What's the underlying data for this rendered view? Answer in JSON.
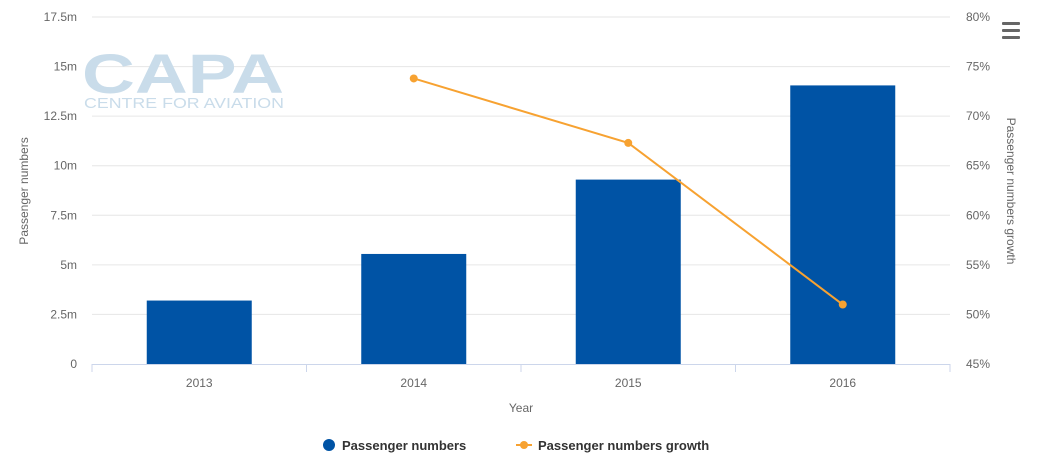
{
  "colors": {
    "bar": "#0053a5",
    "line": "#f7a231",
    "grid": "#e6e6e6",
    "axis_text": "#666666",
    "legend_text": "#333333",
    "watermark": "#c9dcea"
  },
  "watermark": {
    "logo_text": "CAPA",
    "tagline": "CENTRE FOR AVIATION"
  },
  "menu": {
    "icon": "hamburger-menu-icon"
  },
  "chart_data": {
    "type": "bar",
    "categories": [
      "2013",
      "2014",
      "2015",
      "2016"
    ],
    "series": [
      {
        "name": "Passenger numbers",
        "type": "bar",
        "axis": "left",
        "values": [
          3200000,
          5550000,
          9300000,
          14050000
        ]
      },
      {
        "name": "Passenger numbers growth",
        "type": "line",
        "axis": "right",
        "values": [
          null,
          73.8,
          67.3,
          51.0
        ]
      }
    ],
    "xlabel": "Year",
    "ylabel": "Passenger numbers",
    "y2label": "Passenger numbers growth",
    "ylim": [
      0,
      17500000
    ],
    "y2lim": [
      45,
      80
    ],
    "yticks": [
      "0",
      "2.5m",
      "5m",
      "7.5m",
      "10m",
      "12.5m",
      "15m",
      "17.5m"
    ],
    "y2ticks": [
      "45%",
      "50%",
      "55%",
      "60%",
      "65%",
      "70%",
      "75%",
      "80%"
    ],
    "grid": true,
    "legend": "bottom-center"
  }
}
